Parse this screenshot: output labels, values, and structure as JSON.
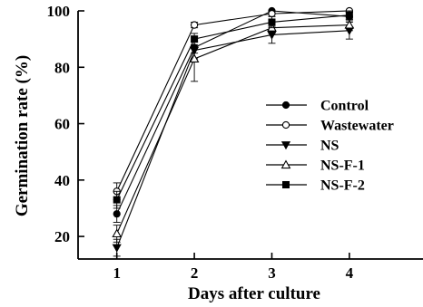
{
  "chart_data": {
    "type": "line",
    "xlabel": "Days after culture",
    "ylabel": "Germination rate (%)",
    "x": [
      1,
      2,
      3,
      4
    ],
    "xticks": [
      "1",
      "2",
      "3",
      "4"
    ],
    "yticks": [
      "20",
      "40",
      "60",
      "80",
      "100"
    ],
    "xlim": [
      0.5,
      4.95
    ],
    "ylim": [
      12,
      100
    ],
    "legend_position": "right-middle",
    "series": [
      {
        "name": "Control",
        "marker": "filled-circle",
        "values": [
          28,
          87,
          100,
          98
        ],
        "errors": [
          3,
          2,
          1,
          1.5
        ]
      },
      {
        "name": "Wastewater",
        "marker": "open-circle",
        "values": [
          36,
          95,
          99,
          100
        ],
        "errors": [
          3,
          1,
          1,
          0.5
        ]
      },
      {
        "name": "NS",
        "marker": "filled-triangle-down",
        "values": [
          16,
          86,
          91.5,
          93
        ],
        "errors": [
          3,
          3,
          3,
          3
        ]
      },
      {
        "name": "NS-F-1",
        "marker": "open-triangle-up",
        "values": [
          21,
          83,
          94,
          95
        ],
        "errors": [
          3,
          8,
          2,
          2
        ]
      },
      {
        "name": "NS-F-2",
        "marker": "filled-square",
        "values": [
          33,
          90,
          96,
          98.5
        ],
        "errors": [
          3,
          2,
          2,
          1.5
        ]
      }
    ]
  }
}
